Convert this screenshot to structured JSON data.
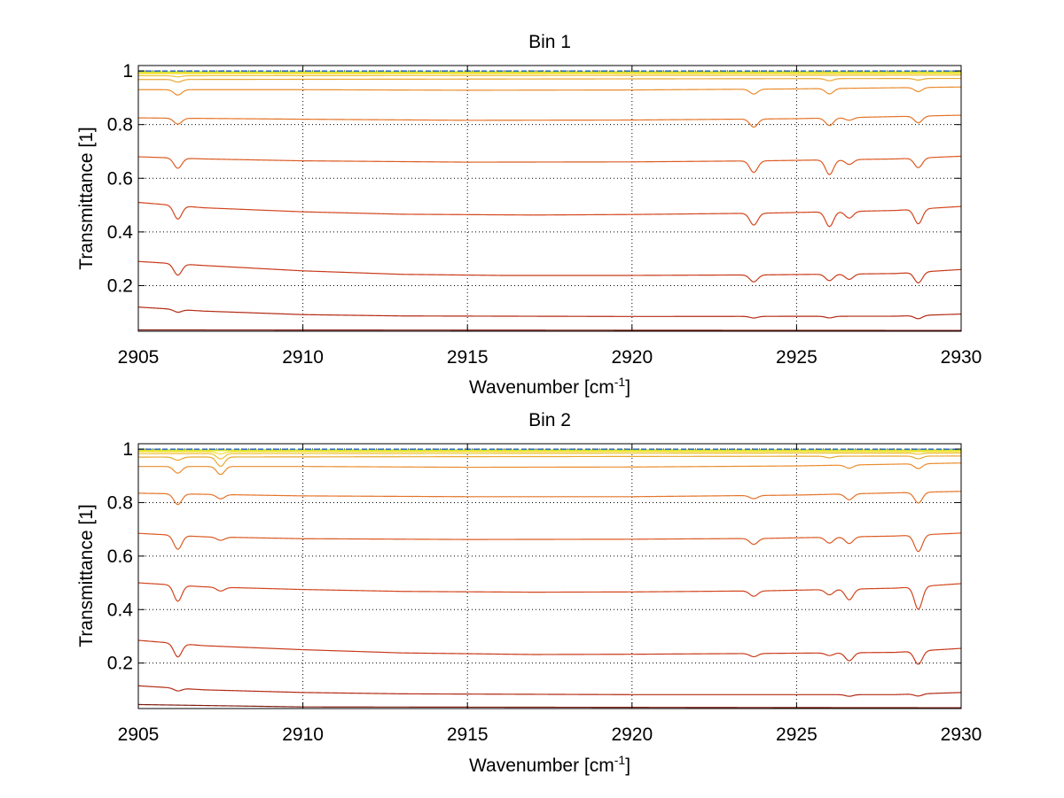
{
  "figure": {
    "background": "#ffffff",
    "axis_color": "#000000",
    "grid_color": "#000000"
  },
  "chart_data": [
    {
      "type": "line",
      "title": "Bin 1",
      "xlabel_main": "Wavenumber [cm",
      "xlabel_sup": "-1",
      "xlabel_end": "]",
      "ylabel": "Transmittance [1]",
      "xlim": [
        2905,
        2930
      ],
      "ylim": [
        0.03,
        1.02
      ],
      "xticks": [
        2905,
        2910,
        2915,
        2920,
        2925,
        2930
      ],
      "yticks": [
        0.2,
        0.4,
        0.6,
        0.8,
        1
      ],
      "ytick_labels": [
        "0.2",
        "0.4",
        "0.6",
        "0.8",
        "1"
      ],
      "grid": true,
      "series": [
        {
          "color": "#7f1d10",
          "baseline": [
            [
              2905,
              0.035
            ],
            [
              2930,
              0.033
            ]
          ],
          "dips": []
        },
        {
          "color": "#b22a14",
          "baseline": [
            [
              2905,
              0.12
            ],
            [
              2907,
              0.105
            ],
            [
              2910,
              0.092
            ],
            [
              2913,
              0.087
            ],
            [
              2920,
              0.085
            ],
            [
              2928,
              0.086
            ],
            [
              2930,
              0.094
            ]
          ],
          "dips": [
            [
              2906.2,
              0.01
            ],
            [
              2923.7,
              0.006
            ],
            [
              2926,
              0.006
            ],
            [
              2928.7,
              0.012
            ]
          ]
        },
        {
          "color": "#c83a1a",
          "baseline": [
            [
              2905,
              0.29
            ],
            [
              2907,
              0.275
            ],
            [
              2910,
              0.255
            ],
            [
              2913,
              0.242
            ],
            [
              2916,
              0.238
            ],
            [
              2920,
              0.238
            ],
            [
              2924,
              0.24
            ],
            [
              2928,
              0.245
            ],
            [
              2930,
              0.26
            ]
          ],
          "dips": [
            [
              2906.2,
              0.042
            ],
            [
              2923.7,
              0.026
            ],
            [
              2926,
              0.024
            ],
            [
              2926.6,
              0.02
            ],
            [
              2928.7,
              0.04
            ]
          ]
        },
        {
          "color": "#d2461e",
          "baseline": [
            [
              2905,
              0.51
            ],
            [
              2907,
              0.49
            ],
            [
              2910,
              0.475
            ],
            [
              2913,
              0.466
            ],
            [
              2917,
              0.463
            ],
            [
              2920,
              0.465
            ],
            [
              2924,
              0.47
            ],
            [
              2928,
              0.48
            ],
            [
              2930,
              0.495
            ]
          ],
          "dips": [
            [
              2906.2,
              0.05
            ],
            [
              2923.7,
              0.044
            ],
            [
              2926,
              0.055
            ],
            [
              2926.6,
              0.025
            ],
            [
              2928.7,
              0.055
            ]
          ]
        },
        {
          "color": "#dc5a22",
          "baseline": [
            [
              2905,
              0.68
            ],
            [
              2907,
              0.672
            ],
            [
              2910,
              0.665
            ],
            [
              2915,
              0.66
            ],
            [
              2920,
              0.661
            ],
            [
              2924,
              0.665
            ],
            [
              2928,
              0.672
            ],
            [
              2930,
              0.682
            ]
          ],
          "dips": [
            [
              2906.2,
              0.038
            ],
            [
              2923.7,
              0.043
            ],
            [
              2926,
              0.055
            ],
            [
              2926.6,
              0.018
            ],
            [
              2928.7,
              0.036
            ]
          ]
        },
        {
          "color": "#e47328",
          "baseline": [
            [
              2905,
              0.825
            ],
            [
              2910,
              0.82
            ],
            [
              2915,
              0.816
            ],
            [
              2920,
              0.817
            ],
            [
              2925,
              0.822
            ],
            [
              2930,
              0.835
            ]
          ],
          "dips": [
            [
              2906.2,
              0.022
            ],
            [
              2923.7,
              0.03
            ],
            [
              2926,
              0.028
            ],
            [
              2926.6,
              0.01
            ],
            [
              2928.7,
              0.025
            ]
          ]
        },
        {
          "color": "#ea8c2e",
          "baseline": [
            [
              2905,
              0.93
            ],
            [
              2910,
              0.93
            ],
            [
              2915,
              0.928
            ],
            [
              2920,
              0.929
            ],
            [
              2925,
              0.933
            ],
            [
              2930,
              0.94
            ]
          ],
          "dips": [
            [
              2906.2,
              0.02
            ],
            [
              2923.7,
              0.018
            ],
            [
              2926,
              0.02
            ],
            [
              2928.7,
              0.015
            ]
          ]
        },
        {
          "color": "#e8a630",
          "baseline": [
            [
              2905,
              0.968
            ],
            [
              2930,
              0.972
            ]
          ],
          "dips": [
            [
              2906.2,
              0.01
            ],
            [
              2926,
              0.008
            ],
            [
              2928.7,
              0.006
            ]
          ]
        },
        {
          "color": "#ecc134",
          "baseline": [
            [
              2905,
              0.982
            ],
            [
              2930,
              0.984
            ]
          ],
          "dips": [
            [
              2906.2,
              0.004
            ]
          ]
        },
        {
          "color": "#f4dc38",
          "baseline": [
            [
              2905,
              0.99
            ],
            [
              2930,
              0.99
            ]
          ],
          "dips": []
        },
        {
          "color": "#f8ee30",
          "baseline": [
            [
              2905,
              0.994
            ],
            [
              2930,
              0.994
            ]
          ],
          "dips": []
        },
        {
          "color": "#b4d23c",
          "baseline": [
            [
              2905,
              0.997
            ],
            [
              2930,
              0.997
            ]
          ],
          "dips": []
        },
        {
          "color": "#40b4a8",
          "baseline": [
            [
              2905,
              0.999
            ],
            [
              2930,
              0.999
            ]
          ],
          "dips": []
        },
        {
          "color": "#2050b4",
          "baseline": [
            [
              2905,
              1.0
            ],
            [
              2930,
              1.0
            ]
          ],
          "dips": []
        }
      ]
    },
    {
      "type": "line",
      "title": "Bin 2",
      "xlabel_main": "Wavenumber [cm",
      "xlabel_sup": "-1",
      "xlabel_end": "]",
      "ylabel": "Transmittance [1]",
      "xlim": [
        2905,
        2930
      ],
      "ylim": [
        0.03,
        1.02
      ],
      "xticks": [
        2905,
        2910,
        2915,
        2920,
        2925,
        2930
      ],
      "yticks": [
        0.2,
        0.4,
        0.6,
        0.8,
        1
      ],
      "ytick_labels": [
        "0.2",
        "0.4",
        "0.6",
        "0.8",
        "1"
      ],
      "grid": true,
      "series": [
        {
          "color": "#7f1d10",
          "baseline": [
            [
              2905,
              0.045
            ],
            [
              2910,
              0.036
            ],
            [
              2930,
              0.033
            ]
          ],
          "dips": []
        },
        {
          "color": "#b22a14",
          "baseline": [
            [
              2905,
              0.115
            ],
            [
              2907,
              0.1
            ],
            [
              2910,
              0.09
            ],
            [
              2913,
              0.085
            ],
            [
              2920,
              0.082
            ],
            [
              2928,
              0.082
            ],
            [
              2930,
              0.09
            ]
          ],
          "dips": [
            [
              2906.2,
              0.01
            ],
            [
              2926.6,
              0.006
            ],
            [
              2928.7,
              0.008
            ]
          ]
        },
        {
          "color": "#c83a1a",
          "baseline": [
            [
              2905,
              0.285
            ],
            [
              2907,
              0.265
            ],
            [
              2910,
              0.25
            ],
            [
              2913,
              0.238
            ],
            [
              2917,
              0.232
            ],
            [
              2920,
              0.233
            ],
            [
              2924,
              0.236
            ],
            [
              2928,
              0.24
            ],
            [
              2930,
              0.255
            ]
          ],
          "dips": [
            [
              2906.2,
              0.05
            ],
            [
              2923.7,
              0.012
            ],
            [
              2926,
              0.01
            ],
            [
              2926.6,
              0.03
            ],
            [
              2928.7,
              0.05
            ]
          ]
        },
        {
          "color": "#d2461e",
          "baseline": [
            [
              2905,
              0.5
            ],
            [
              2907,
              0.485
            ],
            [
              2910,
              0.475
            ],
            [
              2913,
              0.468
            ],
            [
              2917,
              0.465
            ],
            [
              2920,
              0.466
            ],
            [
              2924,
              0.47
            ],
            [
              2928,
              0.48
            ],
            [
              2930,
              0.497
            ]
          ],
          "dips": [
            [
              2906.2,
              0.06
            ],
            [
              2907.5,
              0.014
            ],
            [
              2923.7,
              0.02
            ],
            [
              2926,
              0.02
            ],
            [
              2926.6,
              0.04
            ],
            [
              2928.7,
              0.085
            ]
          ]
        },
        {
          "color": "#dc5a22",
          "baseline": [
            [
              2905,
              0.685
            ],
            [
              2907,
              0.672
            ],
            [
              2910,
              0.665
            ],
            [
              2915,
              0.662
            ],
            [
              2920,
              0.663
            ],
            [
              2924,
              0.666
            ],
            [
              2928,
              0.675
            ],
            [
              2930,
              0.686
            ]
          ],
          "dips": [
            [
              2906.2,
              0.052
            ],
            [
              2907.5,
              0.012
            ],
            [
              2923.7,
              0.022
            ],
            [
              2926,
              0.022
            ],
            [
              2926.6,
              0.025
            ],
            [
              2928.7,
              0.062
            ]
          ]
        },
        {
          "color": "#e47328",
          "baseline": [
            [
              2905,
              0.835
            ],
            [
              2910,
              0.825
            ],
            [
              2915,
              0.822
            ],
            [
              2920,
              0.822
            ],
            [
              2925,
              0.828
            ],
            [
              2930,
              0.842
            ]
          ],
          "dips": [
            [
              2906.2,
              0.04
            ],
            [
              2907.5,
              0.016
            ],
            [
              2923.7,
              0.012
            ],
            [
              2926.6,
              0.022
            ],
            [
              2928.7,
              0.04
            ]
          ]
        },
        {
          "color": "#ea8c2e",
          "baseline": [
            [
              2905,
              0.935
            ],
            [
              2910,
              0.935
            ],
            [
              2915,
              0.932
            ],
            [
              2920,
              0.933
            ],
            [
              2925,
              0.937
            ],
            [
              2930,
              0.948
            ]
          ],
          "dips": [
            [
              2906.2,
              0.025
            ],
            [
              2907.5,
              0.03
            ],
            [
              2926.6,
              0.012
            ],
            [
              2928.7,
              0.018
            ]
          ]
        },
        {
          "color": "#e8a630",
          "baseline": [
            [
              2905,
              0.97
            ],
            [
              2930,
              0.974
            ]
          ],
          "dips": [
            [
              2906.2,
              0.012
            ],
            [
              2907.5,
              0.035
            ],
            [
              2926,
              0.006
            ],
            [
              2928.7,
              0.01
            ]
          ]
        },
        {
          "color": "#ecc134",
          "baseline": [
            [
              2905,
              0.983
            ],
            [
              2930,
              0.985
            ]
          ],
          "dips": [
            [
              2907.5,
              0.02
            ],
            [
              2928.7,
              0.004
            ]
          ]
        },
        {
          "color": "#f4dc38",
          "baseline": [
            [
              2905,
              0.99
            ],
            [
              2930,
              0.99
            ]
          ],
          "dips": [
            [
              2907.5,
              0.008
            ]
          ]
        },
        {
          "color": "#f8ee30",
          "baseline": [
            [
              2905,
              0.994
            ],
            [
              2930,
              0.994
            ]
          ],
          "dips": []
        },
        {
          "color": "#b4d23c",
          "baseline": [
            [
              2905,
              0.997
            ],
            [
              2930,
              0.997
            ]
          ],
          "dips": []
        },
        {
          "color": "#40b4a8",
          "baseline": [
            [
              2905,
              0.999
            ],
            [
              2930,
              0.999
            ]
          ],
          "dips": []
        },
        {
          "color": "#2050b4",
          "baseline": [
            [
              2905,
              1.0
            ],
            [
              2930,
              1.0
            ]
          ],
          "dips": []
        }
      ]
    }
  ]
}
